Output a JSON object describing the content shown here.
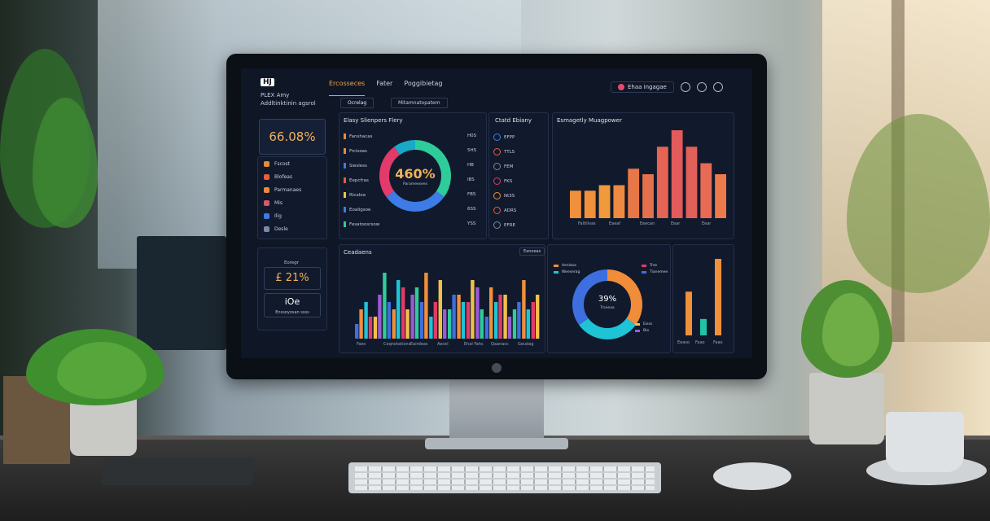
{
  "dashboard": {
    "brand": {
      "badge": "HJ",
      "name": "PLEX Amy",
      "subtitle": "Addltinktinin agsrol"
    },
    "nav": [
      "Ercosseces",
      "Fater",
      "Poggibietag"
    ],
    "search_label": "Ehaa ingagae",
    "left_tabs": [
      "Ocrelag",
      "Mitamnatopatem"
    ],
    "main_stat": "66.08%",
    "sidebar_items": [
      "Fscost",
      "Blofeas",
      "Parmanaes",
      "Mis",
      "Ilig",
      "Desle"
    ],
    "kpi_1": {
      "label": "Eoregr",
      "value": "£ 21%"
    },
    "kpi_2": {
      "label": "Enssoyosan ssss",
      "value": "iOe"
    },
    "donut_panel": {
      "title": "Elasy Slienpers Flery",
      "center_value": "460%",
      "center_label": "Parameesees",
      "legend": [
        "Fanshacas",
        "Frcisoas",
        "Siesless",
        "Eepcfras",
        "Rlcaloa",
        "Eoaligsoe",
        "Fesatoosrsow"
      ],
      "legend_values": [
        "H0S",
        "5HS",
        "HB",
        "IBS",
        "FBS",
        "6SS",
        "YSS"
      ]
    },
    "list_panel": {
      "title": "Ctatd Ebiany",
      "items": [
        "EFPP",
        "TTLS",
        "FEM",
        "FKS",
        "Nt3S",
        "ADRS",
        "EFRE"
      ]
    },
    "bar_panel_top": {
      "title": "Esmagetly Muagpower",
      "x_labels": [
        "Faltillvas",
        "Eaeaf",
        "Eeecan",
        "Eear",
        "Eear"
      ]
    },
    "bar_panel_bottom": {
      "title": "Ceadaens",
      "action": "Eanoeas",
      "x_labels": [
        "Faes",
        "Ceqnotations",
        "Eairdeas",
        "Aecel",
        "Ehal Fahs",
        "Qaanacc",
        "Geudag"
      ]
    },
    "donut2": {
      "center_value": "39%",
      "center_label": "Trseeaa",
      "legend": [
        "Aenlasa",
        "Weeserag",
        "Trse",
        "Tianemee",
        "Eisss",
        "Bie"
      ]
    },
    "bar_panel_right": {
      "x_labels": [
        "Eeaso",
        "Faao",
        "Faao"
      ]
    }
  },
  "chart_data": [
    {
      "type": "pie",
      "values": [
        35,
        30,
        25,
        10
      ],
      "colors": [
        "#2ecc9a",
        "#3d7be6",
        "#e23a6a",
        "#1aa8c9"
      ]
    },
    {
      "type": "bar",
      "values": [
        5,
        5,
        6,
        6,
        9,
        8,
        13,
        16,
        13,
        10,
        8
      ],
      "colors": [
        "#f0903a",
        "#f0903a",
        "#f09a3c",
        "#ee8a40",
        "#e87748",
        "#e4704e",
        "#e66454",
        "#e25a5a",
        "#e2605a",
        "#e86a55",
        "#ec7a4a"
      ]
    },
    {
      "type": "bar",
      "series": [
        {
          "values": [
            2,
            5,
            3,
            9,
            4,
            7,
            6,
            5,
            3,
            8,
            4,
            6,
            5,
            7,
            3,
            5,
            6,
            4,
            8,
            5
          ]
        },
        {
          "values": [
            4,
            3,
            6,
            5,
            8,
            4,
            7,
            9,
            5,
            4,
            6,
            5,
            8,
            4,
            7,
            6,
            3,
            5,
            4,
            6
          ]
        }
      ]
    },
    {
      "type": "pie",
      "values": [
        35,
        30,
        35
      ],
      "colors": [
        "#f08c3a",
        "#1fc3d6",
        "#3d6fe0"
      ]
    },
    {
      "type": "bar",
      "values": [
        8,
        3,
        14
      ],
      "colors": [
        "#f0903a",
        "#1fc3a6",
        "#f0903a"
      ]
    }
  ]
}
